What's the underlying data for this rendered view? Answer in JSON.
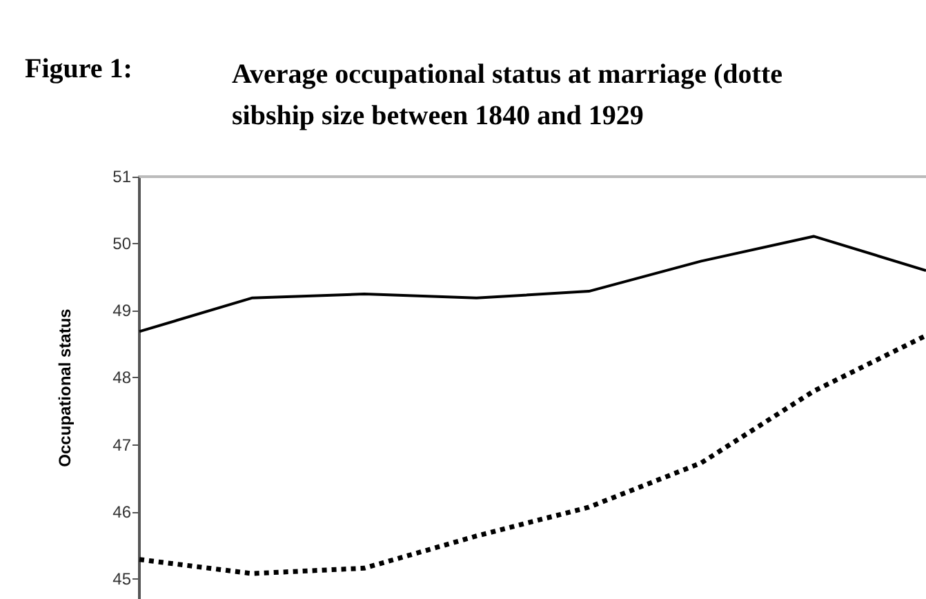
{
  "chart_data": {
    "type": "line",
    "title": "Average occupational status at marriage (dotte\nsibship size between 1840 and 1929",
    "annotations": [
      "Figure 1:"
    ],
    "ylabel": "Occupational status",
    "categories": [
      null,
      null,
      null,
      null,
      null,
      null,
      null,
      null
    ],
    "series": [
      {
        "color": "#000000",
        "line_style": "solid",
        "values": [
          48.69,
          49.19,
          49.25,
          49.19,
          49.29,
          49.74,
          50.11,
          49.6
        ]
      },
      {
        "color": "#000000",
        "line_style": "dotted",
        "values": [
          45.29,
          45.08,
          45.16,
          45.64,
          46.07,
          46.73,
          47.8,
          48.63
        ]
      }
    ],
    "ylim": [
      44.7,
      51
    ],
    "yticks": [
      45,
      46,
      47,
      48,
      49,
      50,
      51
    ],
    "grid": false,
    "marker": "none",
    "tick_labels": "y"
  }
}
